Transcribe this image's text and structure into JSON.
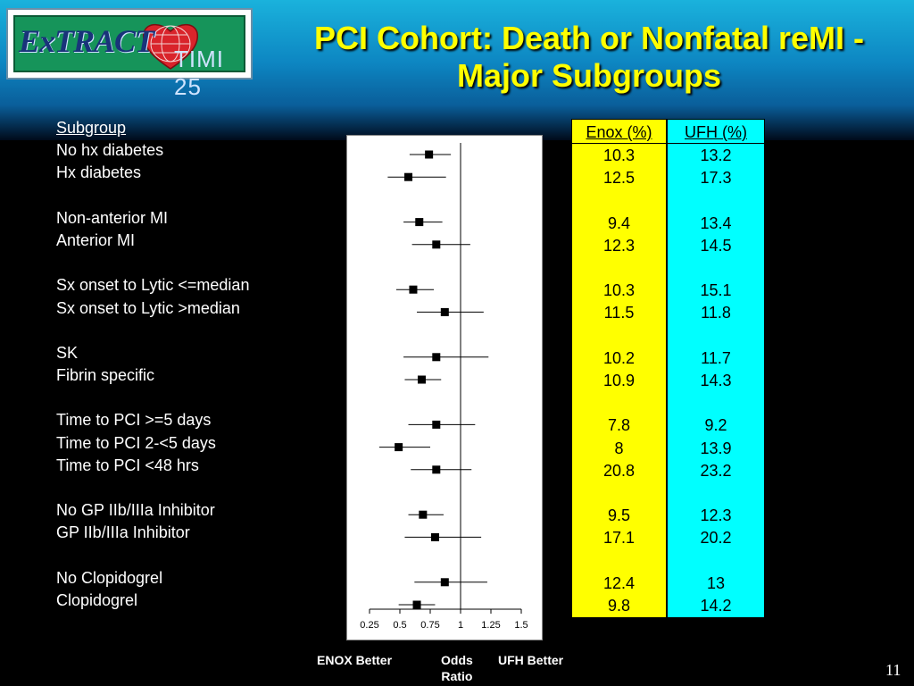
{
  "logo": {
    "extract_text": "ExTRACT",
    "timi_text": "TIMI 25"
  },
  "slide": {
    "title_line1": "PCI Cohort: Death or Nonfatal reMI -",
    "title_line2": "Major Subgroups",
    "page_number": "11"
  },
  "subgroups": {
    "header": "Subgroup",
    "rows": [
      "No hx diabetes",
      "Hx diabetes",
      "",
      "Non-anterior MI",
      "Anterior MI",
      "",
      "Sx onset to Lytic <=median",
      "Sx onset to Lytic >median",
      "",
      "SK",
      "Fibrin specific",
      "",
      "Time to PCI >=5 days",
      "Time to PCI 2-<5 days",
      "Time to PCI <48 hrs",
      "",
      "No GP IIb/IIIa Inhibitor",
      "GP IIb/IIIa Inhibitor",
      "",
      "No Clopidogrel",
      "Clopidogrel"
    ]
  },
  "table": {
    "enox_header": "Enox (%)",
    "ufh_header": "UFH (%)",
    "enox": [
      "10.3",
      "12.5",
      "",
      "9.4",
      "12.3",
      "",
      "10.3",
      "11.5",
      "",
      "10.2",
      "10.9",
      "",
      "7.8",
      "8",
      "20.8",
      "",
      "9.5",
      "17.1",
      "",
      "12.4",
      "9.8"
    ],
    "ufh": [
      "13.2",
      "17.3",
      "",
      "13.4",
      "14.5",
      "",
      "15.1",
      "11.8",
      "",
      "11.7",
      "14.3",
      "",
      "9.2",
      "13.9",
      "23.2",
      "",
      "12.3",
      "20.2",
      "",
      "13",
      "14.2"
    ]
  },
  "footer": {
    "enox_better": "ENOX Better",
    "odds_line1": "Odds",
    "odds_line2": "Ratio",
    "ufh_better": "UFH Better"
  },
  "chart_data": {
    "type": "forest",
    "xlabel": "Odds Ratio",
    "xlim": [
      0.25,
      1.5
    ],
    "ticks": [
      0.25,
      0.5,
      0.75,
      1,
      1.25,
      1.5
    ],
    "tick_labels": [
      "0.25",
      "0.5",
      "0.75",
      "1",
      "1.25",
      "1.5"
    ],
    "reference_line": 1,
    "points": [
      {
        "row": 0,
        "or": 0.74,
        "lo": 0.58,
        "hi": 0.92
      },
      {
        "row": 1,
        "or": 0.57,
        "lo": 0.4,
        "hi": 0.88
      },
      {
        "row": 3,
        "or": 0.66,
        "lo": 0.53,
        "hi": 0.85
      },
      {
        "row": 4,
        "or": 0.8,
        "lo": 0.6,
        "hi": 1.08
      },
      {
        "row": 6,
        "or": 0.61,
        "lo": 0.47,
        "hi": 0.78
      },
      {
        "row": 7,
        "or": 0.87,
        "lo": 0.64,
        "hi": 1.19
      },
      {
        "row": 9,
        "or": 0.8,
        "lo": 0.53,
        "hi": 1.23
      },
      {
        "row": 10,
        "or": 0.68,
        "lo": 0.54,
        "hi": 0.84
      },
      {
        "row": 12,
        "or": 0.8,
        "lo": 0.57,
        "hi": 1.12
      },
      {
        "row": 13,
        "or": 0.49,
        "lo": 0.33,
        "hi": 0.75
      },
      {
        "row": 14,
        "or": 0.8,
        "lo": 0.59,
        "hi": 1.09
      },
      {
        "row": 16,
        "or": 0.69,
        "lo": 0.57,
        "hi": 0.86
      },
      {
        "row": 17,
        "or": 0.79,
        "lo": 0.54,
        "hi": 1.17
      },
      {
        "row": 19,
        "or": 0.87,
        "lo": 0.62,
        "hi": 1.22
      },
      {
        "row": 20,
        "or": 0.64,
        "lo": 0.49,
        "hi": 0.79
      }
    ]
  }
}
